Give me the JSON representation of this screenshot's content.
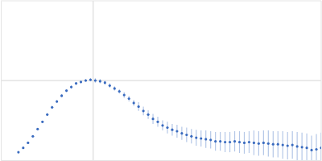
{
  "chart_data": {
    "type": "scatter",
    "x": [
      0.33,
      0.42,
      0.51,
      0.6,
      0.69,
      0.78,
      0.87,
      0.96,
      1.05,
      1.14,
      1.23,
      1.32,
      1.41,
      1.5,
      1.59,
      1.68,
      1.77,
      1.86,
      1.95,
      2.04,
      2.13,
      2.22,
      2.31,
      2.4,
      2.49,
      2.58,
      2.67,
      2.76,
      2.85,
      2.94,
      3.03,
      3.12,
      3.21,
      3.3,
      3.39,
      3.48,
      3.57,
      3.66,
      3.75,
      3.84,
      3.93,
      4.02,
      4.11,
      4.2,
      4.29,
      4.38,
      4.47,
      4.56,
      4.65,
      4.74,
      4.83,
      4.92,
      5.01,
      5.1,
      5.19,
      5.28,
      5.37,
      5.46,
      5.55,
      5.64,
      5.73,
      5.82,
      5.91,
      6.0
    ],
    "series": [
      {
        "color": "#3a6bbf",
        "marker": "circle",
        "values": [
          0.11,
          0.17,
          0.24,
          0.33,
          0.43,
          0.53,
          0.63,
          0.73,
          0.81,
          0.89,
          0.96,
          1.01,
          1.06,
          1.08,
          1.1,
          1.11,
          1.1,
          1.09,
          1.07,
          1.03,
          0.99,
          0.95,
          0.9,
          0.85,
          0.79,
          0.74,
          0.68,
          0.63,
          0.57,
          0.53,
          0.48,
          0.45,
          0.42,
          0.4,
          0.37,
          0.35,
          0.33,
          0.31,
          0.3,
          0.29,
          0.28,
          0.26,
          0.26,
          0.25,
          0.25,
          0.26,
          0.25,
          0.24,
          0.25,
          0.24,
          0.23,
          0.24,
          0.23,
          0.22,
          0.22,
          0.21,
          0.2,
          0.21,
          0.19,
          0.18,
          0.17,
          0.14,
          0.15,
          0.17
        ],
        "errors": [
          0.01,
          0.01,
          0.01,
          0.01,
          0.01,
          0.01,
          0.02,
          0.02,
          0.02,
          0.02,
          0.02,
          0.02,
          0.02,
          0.02,
          0.02,
          0.02,
          0.03,
          0.03,
          0.03,
          0.03,
          0.03,
          0.03,
          0.04,
          0.04,
          0.04,
          0.06,
          0.06,
          0.06,
          0.07,
          0.07,
          0.07,
          0.08,
          0.08,
          0.09,
          0.09,
          0.1,
          0.1,
          0.11,
          0.11,
          0.12,
          0.12,
          0.13,
          0.13,
          0.14,
          0.14,
          0.14,
          0.15,
          0.15,
          0.15,
          0.17,
          0.17,
          0.17,
          0.18,
          0.18,
          0.18,
          0.19,
          0.19,
          0.19,
          0.2,
          0.2,
          0.2,
          0.2,
          0.21,
          0.21
        ]
      }
    ],
    "xlim": [
      0,
      6
    ],
    "xticks": [
      1.73
    ],
    "ylim": [
      0,
      2.2
    ],
    "yticks": [
      1.1
    ],
    "grid": true,
    "tick_labels": false
  }
}
